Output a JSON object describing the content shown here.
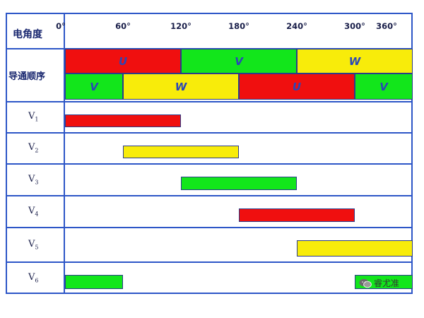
{
  "header": {
    "angle_label": "电角度",
    "sequence_label": "导通顺序"
  },
  "angle_ticks": [
    "0°",
    "60°",
    "120°",
    "180°",
    "240°",
    "300°",
    "360°"
  ],
  "colors": {
    "red": "#f00f0f",
    "green": "#12e61b",
    "yellow": "#f8ec0a",
    "grid": "#2d56c7"
  },
  "sequence_top": [
    {
      "label": "U",
      "color": "red",
      "start": 0,
      "end": 120
    },
    {
      "label": "V",
      "color": "green",
      "start": 120,
      "end": 240
    },
    {
      "label": "W",
      "color": "yellow",
      "start": 240,
      "end": 360
    }
  ],
  "sequence_bottom": [
    {
      "label": "V",
      "color": "green",
      "start": 0,
      "end": 60
    },
    {
      "label": "W",
      "color": "yellow",
      "start": 60,
      "end": 180
    },
    {
      "label": "U",
      "color": "red",
      "start": 180,
      "end": 300
    },
    {
      "label": "V",
      "color": "green",
      "start": 300,
      "end": 360
    }
  ],
  "rows": [
    {
      "name": "V",
      "sub": "1",
      "color": "red",
      "start": 0,
      "end": 120
    },
    {
      "name": "V",
      "sub": "2",
      "color": "yellow",
      "start": 60,
      "end": 180
    },
    {
      "name": "V",
      "sub": "3",
      "color": "green",
      "start": 120,
      "end": 240
    },
    {
      "name": "V",
      "sub": "4",
      "color": "red",
      "start": 180,
      "end": 300
    },
    {
      "name": "V",
      "sub": "5",
      "color": "yellow",
      "start": 240,
      "end": 360
    },
    {
      "name": "V",
      "sub": "6",
      "color": "green",
      "start": 300,
      "end": 360
    },
    {
      "name": "V",
      "sub": "6",
      "color": "green",
      "start": 0,
      "end": 60
    }
  ],
  "watermark": {
    "text": "睿尤准"
  }
}
